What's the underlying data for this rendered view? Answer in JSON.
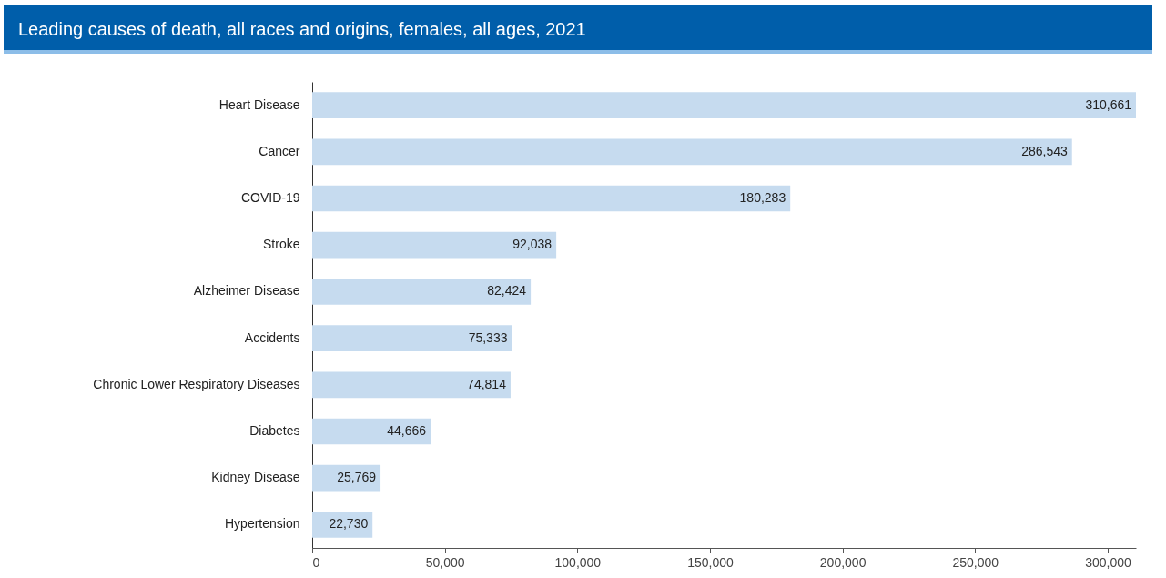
{
  "chart_data": {
    "type": "bar",
    "orientation": "horizontal",
    "title": "Leading causes of death, all races and origins, females, all ages, 2021",
    "categories": [
      "Heart Disease",
      "Cancer",
      "COVID-19",
      "Stroke",
      "Alzheimer Disease",
      "Accidents",
      "Chronic Lower Respiratory Diseases",
      "Diabetes",
      "Kidney Disease",
      "Hypertension"
    ],
    "values": [
      310661,
      286543,
      180283,
      92038,
      82424,
      75333,
      74814,
      44666,
      25769,
      22730
    ],
    "value_labels": [
      "310,661",
      "286,543",
      "180,283",
      "92,038",
      "82,424",
      "75,333",
      "74,814",
      "44,666",
      "25,769",
      "22,730"
    ],
    "color": "#c6dbef",
    "xlim": [
      0,
      310661
    ],
    "xticks": [
      0,
      {
        "value": 50000,
        "label": "50,000"
      },
      {
        "value": 100000,
        "label": "100,000"
      },
      {
        "value": 150000,
        "label": "150,000"
      },
      {
        "value": 200000,
        "label": "200,000"
      },
      {
        "value": 250000,
        "label": "250,000"
      },
      {
        "value": 300000,
        "label": "300,000"
      }
    ],
    "grid": false
  }
}
